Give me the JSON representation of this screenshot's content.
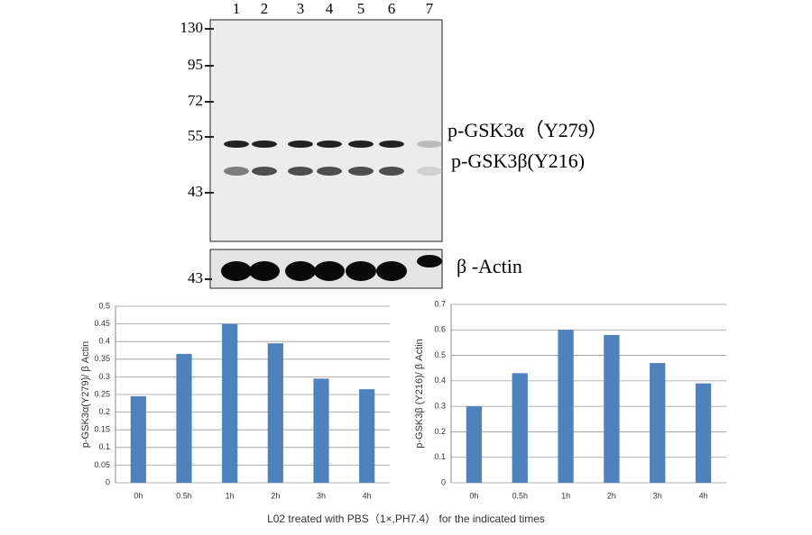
{
  "blot": {
    "lanes": [
      "1",
      "2",
      "3",
      "4",
      "5",
      "6",
      "7"
    ],
    "markers": [
      "130",
      "95",
      "72",
      "55",
      "43"
    ],
    "band_labels": [
      "p-GSK3α（Y279）",
      "p-GSK3β(Y216)"
    ],
    "actin_marker": "43",
    "actin_label": "β -Actin"
  },
  "caption": "L02 treated with PBS（1×,PH7.4）  for the indicated times",
  "chart_data": [
    {
      "type": "bar",
      "y_label": "p-GSK3α(Y279)/ β Actin",
      "categories": [
        "0h",
        "0.5h",
        "1h",
        "2h",
        "3h",
        "4h"
      ],
      "values": [
        0.245,
        0.365,
        0.45,
        0.395,
        0.295,
        0.265
      ],
      "color": "#4f81bd",
      "ylim": [
        0,
        0.5
      ],
      "yticks": [
        0,
        0.05,
        0.1,
        0.15,
        0.2,
        0.25,
        0.3,
        0.35,
        0.4,
        0.45,
        0.5
      ],
      "grid": true
    },
    {
      "type": "bar",
      "y_label": "p-GSK3β (Y216)/ β Actin",
      "categories": [
        "0h",
        "0.5h",
        "1h",
        "2h",
        "3h",
        "4h"
      ],
      "values": [
        0.3,
        0.43,
        0.6,
        0.58,
        0.47,
        0.39
      ],
      "color": "#4f81bd",
      "ylim": [
        0,
        0.7
      ],
      "yticks": [
        0,
        0.1,
        0.2,
        0.3,
        0.4,
        0.5,
        0.6,
        0.7
      ],
      "grid": true
    }
  ]
}
